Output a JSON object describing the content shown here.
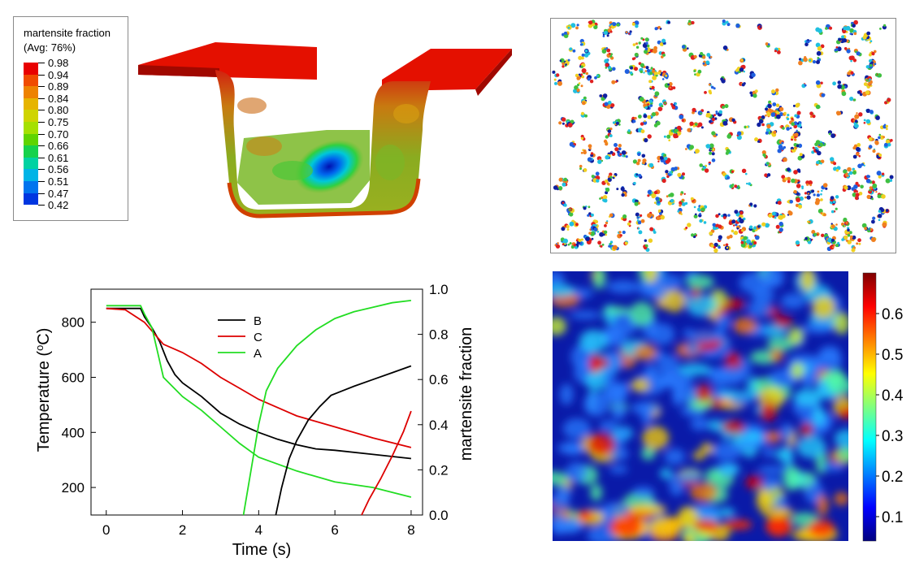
{
  "fem": {
    "legend_title_1": "martensite fraction",
    "legend_title_2": "(Avg: 76%)",
    "legend_values": [
      "0.98",
      "0.94",
      "0.89",
      "0.84",
      "0.80",
      "0.75",
      "0.70",
      "0.66",
      "0.61",
      "0.56",
      "0.51",
      "0.47",
      "0.42"
    ],
    "legend_colors": [
      "#e80000",
      "#f04b00",
      "#ee8200",
      "#e6b400",
      "#cfd400",
      "#a5e000",
      "#5fd400",
      "#16d24c",
      "#00d2a2",
      "#00b4e6",
      "#0074ee",
      "#0036e0",
      "#0000c8"
    ]
  },
  "heatmap": {
    "colorbar_ticks": [
      "0.6",
      "0.5",
      "0.4",
      "0.3",
      "0.2",
      "0.1"
    ],
    "colorbar_values": [
      0.6,
      0.5,
      0.4,
      0.3,
      0.2,
      0.1
    ],
    "colorbar_range": [
      0.04,
      0.7
    ]
  },
  "chart_data": [
    {
      "type": "line",
      "xlabel": "Time (s)",
      "ylabel_left": "Temperature (°C)",
      "ylabel_left_prefix": "Temperature (",
      "ylabel_left_sup": "o",
      "ylabel_left_suffix": "C)",
      "ylabel_right": "martensite fraction",
      "xlim": [
        -0.4,
        8.3
      ],
      "ylim_left": [
        100,
        920
      ],
      "ylim_right": [
        0,
        1
      ],
      "x_ticks": [
        0,
        2,
        4,
        6,
        8
      ],
      "y_left_ticks": [
        200,
        400,
        600,
        800
      ],
      "y_right_ticks": [
        "0.0",
        "0.2",
        "0.4",
        "0.6",
        "0.8",
        "1.0"
      ],
      "legend": [
        {
          "name": "B",
          "color": "#000000"
        },
        {
          "name": "C",
          "color": "#dd0000"
        },
        {
          "name": "A",
          "color": "#22dd22"
        }
      ],
      "series": [
        {
          "name": "B",
          "axis": "temperature",
          "color": "#000000",
          "x": [
            0,
            0.9,
            1.0,
            1.2,
            1.4,
            1.6,
            1.8,
            2.0,
            2.5,
            3.0,
            3.5,
            4.0,
            4.5,
            5.0,
            5.5,
            6.0,
            7.0,
            8.0
          ],
          "y": [
            850,
            850,
            820,
            780,
            730,
            660,
            610,
            580,
            530,
            470,
            430,
            400,
            375,
            355,
            340,
            335,
            320,
            305
          ]
        },
        {
          "name": "C",
          "axis": "temperature",
          "color": "#dd0000",
          "x": [
            0,
            0.5,
            1.0,
            1.5,
            2.0,
            2.5,
            3.0,
            3.5,
            4.0,
            5.0,
            6.0,
            7.0,
            8.0
          ],
          "y": [
            850,
            845,
            800,
            720,
            690,
            650,
            600,
            560,
            520,
            460,
            420,
            380,
            345
          ]
        },
        {
          "name": "A",
          "axis": "temperature",
          "color": "#22dd22",
          "x": [
            0,
            0.9,
            1.0,
            1.2,
            1.4,
            1.5,
            2.0,
            2.5,
            3.0,
            3.5,
            4.0,
            5.0,
            6.0,
            7.0,
            8.0
          ],
          "y": [
            860,
            860,
            830,
            780,
            660,
            600,
            530,
            480,
            420,
            360,
            310,
            260,
            220,
            200,
            165
          ]
        },
        {
          "name": "A",
          "axis": "martensite",
          "color": "#22dd22",
          "x": [
            3.6,
            3.8,
            4.0,
            4.2,
            4.5,
            5.0,
            5.5,
            6.0,
            6.5,
            7.0,
            7.5,
            8.0
          ],
          "y": [
            0.0,
            0.2,
            0.4,
            0.55,
            0.65,
            0.75,
            0.82,
            0.87,
            0.9,
            0.92,
            0.94,
            0.95
          ]
        },
        {
          "name": "B",
          "axis": "martensite",
          "color": "#000000",
          "x": [
            4.45,
            4.6,
            4.8,
            5.0,
            5.3,
            5.6,
            5.9,
            6.2,
            6.5,
            7.0,
            7.5,
            8.0
          ],
          "y": [
            0.0,
            0.12,
            0.25,
            0.33,
            0.42,
            0.48,
            0.53,
            0.55,
            0.57,
            0.6,
            0.63,
            0.66
          ]
        },
        {
          "name": "C",
          "axis": "martensite",
          "color": "#dd0000",
          "x": [
            6.7,
            6.9,
            7.2,
            7.5,
            7.8,
            8.0
          ],
          "y": [
            0.0,
            0.07,
            0.16,
            0.26,
            0.37,
            0.46
          ]
        }
      ]
    }
  ]
}
